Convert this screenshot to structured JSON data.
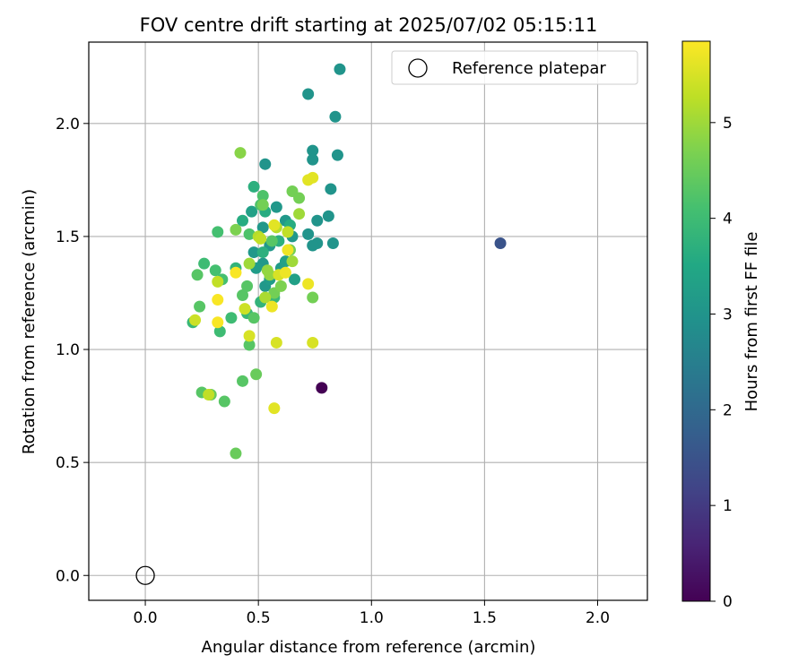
{
  "chart_data": {
    "type": "scatter",
    "title": "FOV centre drift starting at 2025/07/02 05:15:11",
    "xlabel": "Angular distance from reference (arcmin)",
    "ylabel": "Rotation from reference (arcmin)",
    "xlim": [
      -0.25,
      2.22
    ],
    "ylim": [
      -0.11,
      2.36
    ],
    "xticks": [
      "0.0",
      "0.5",
      "1.0",
      "1.5",
      "2.0"
    ],
    "yticks": [
      "0.0",
      "0.5",
      "1.0",
      "1.5",
      "2.0"
    ],
    "grid": true,
    "legend": {
      "placement": "top-right",
      "label": "Reference platepar"
    },
    "reference_point": {
      "x": 0.0,
      "y": 0.0,
      "marker": "open-circle"
    },
    "colorbar": {
      "label": "Hours from first FF file",
      "range": [
        0,
        5.85
      ],
      "ticks": [
        "0",
        "1",
        "2",
        "3",
        "4",
        "5"
      ],
      "colormap": "viridis"
    },
    "series": [
      {
        "points": [
          [
            0.78,
            0.83,
            0.0
          ],
          [
            1.57,
            1.47,
            1.5
          ],
          [
            0.86,
            2.24,
            3.0
          ],
          [
            0.72,
            2.13,
            3.0
          ],
          [
            0.84,
            2.03,
            3.0
          ],
          [
            0.74,
            1.88,
            3.0
          ],
          [
            0.74,
            1.84,
            3.0
          ],
          [
            0.85,
            1.86,
            3.0
          ],
          [
            0.53,
            1.82,
            3.0
          ],
          [
            0.82,
            1.71,
            3.0
          ],
          [
            0.81,
            1.59,
            3.0
          ],
          [
            0.76,
            1.57,
            3.0
          ],
          [
            0.72,
            1.51,
            3.0
          ],
          [
            0.76,
            1.47,
            3.0
          ],
          [
            0.74,
            1.46,
            3.0
          ],
          [
            0.83,
            1.47,
            3.0
          ],
          [
            0.58,
            1.63,
            3.1
          ],
          [
            0.62,
            1.57,
            3.1
          ],
          [
            0.52,
            1.54,
            3.1
          ],
          [
            0.65,
            1.5,
            3.1
          ],
          [
            0.55,
            1.46,
            3.1
          ],
          [
            0.48,
            1.43,
            3.1
          ],
          [
            0.52,
            1.38,
            3.1
          ],
          [
            0.53,
            1.28,
            3.1
          ],
          [
            0.49,
            1.36,
            3.2
          ],
          [
            0.6,
            1.36,
            3.2
          ],
          [
            0.55,
            1.31,
            3.2
          ],
          [
            0.62,
            1.39,
            3.3
          ],
          [
            0.66,
            1.31,
            3.3
          ],
          [
            0.47,
            1.61,
            3.3
          ],
          [
            0.43,
            1.57,
            3.6
          ],
          [
            0.53,
            1.61,
            3.6
          ],
          [
            0.64,
            1.55,
            3.6
          ],
          [
            0.59,
            1.48,
            3.7
          ],
          [
            0.48,
            1.72,
            3.7
          ],
          [
            0.52,
            1.43,
            3.7
          ],
          [
            0.51,
            1.21,
            3.8
          ],
          [
            0.4,
            1.36,
            3.8
          ],
          [
            0.45,
            1.16,
            3.9
          ],
          [
            0.57,
            1.23,
            3.9
          ],
          [
            0.21,
            1.12,
            3.9
          ],
          [
            0.38,
            1.14,
            4.0
          ],
          [
            0.33,
            1.08,
            4.0
          ],
          [
            0.26,
            1.38,
            4.0
          ],
          [
            0.31,
            1.35,
            4.1
          ],
          [
            0.34,
            1.31,
            4.1
          ],
          [
            0.32,
            1.52,
            4.1
          ],
          [
            0.46,
            1.51,
            4.2
          ],
          [
            0.51,
            1.64,
            4.2
          ],
          [
            0.52,
            1.68,
            4.2
          ],
          [
            0.56,
            1.48,
            4.3
          ],
          [
            0.43,
            1.24,
            4.3
          ],
          [
            0.23,
            1.33,
            4.3
          ],
          [
            0.24,
            1.19,
            4.3
          ],
          [
            0.45,
            1.28,
            4.3
          ],
          [
            0.48,
            1.14,
            4.3
          ],
          [
            0.46,
            1.02,
            4.3
          ],
          [
            0.25,
            0.81,
            4.3
          ],
          [
            0.35,
            0.77,
            4.3
          ],
          [
            0.43,
            0.86,
            4.3
          ],
          [
            0.4,
            0.54,
            4.5
          ],
          [
            0.49,
            0.89,
            4.5
          ],
          [
            0.29,
            0.8,
            4.5
          ],
          [
            0.65,
            1.7,
            4.6
          ],
          [
            0.68,
            1.67,
            4.6
          ],
          [
            0.52,
            1.64,
            4.6
          ],
          [
            0.64,
            1.44,
            4.6
          ],
          [
            0.74,
            1.23,
            4.6
          ],
          [
            0.57,
            1.25,
            4.6
          ],
          [
            0.6,
            1.28,
            4.7
          ],
          [
            0.4,
            1.53,
            4.7
          ],
          [
            0.42,
            1.87,
            4.8
          ],
          [
            0.54,
            1.35,
            4.9
          ],
          [
            0.55,
            1.33,
            4.9
          ],
          [
            0.46,
            1.38,
            5.0
          ],
          [
            0.68,
            1.6,
            5.0
          ],
          [
            0.65,
            1.39,
            5.0
          ],
          [
            0.53,
            1.23,
            5.1
          ],
          [
            0.58,
            1.54,
            5.2
          ],
          [
            0.5,
            1.5,
            5.2
          ],
          [
            0.63,
            1.52,
            5.3
          ],
          [
            0.51,
            1.49,
            5.3
          ],
          [
            0.32,
            1.3,
            5.3
          ],
          [
            0.28,
            0.8,
            5.3
          ],
          [
            0.44,
            1.18,
            5.4
          ],
          [
            0.22,
            1.13,
            5.4
          ],
          [
            0.46,
            1.06,
            5.5
          ],
          [
            0.59,
            1.33,
            5.5
          ],
          [
            0.58,
            1.03,
            5.5
          ],
          [
            0.74,
            1.03,
            5.5
          ],
          [
            0.57,
            0.74,
            5.6
          ],
          [
            0.72,
            1.75,
            5.6
          ],
          [
            0.74,
            1.76,
            5.6
          ],
          [
            0.57,
            1.55,
            5.6
          ],
          [
            0.63,
            1.44,
            5.7
          ],
          [
            0.62,
            1.34,
            5.7
          ],
          [
            0.72,
            1.29,
            5.7
          ],
          [
            0.56,
            1.19,
            5.7
          ],
          [
            0.32,
            1.22,
            5.8
          ],
          [
            0.32,
            1.12,
            5.8
          ],
          [
            0.4,
            1.34,
            5.8
          ]
        ]
      }
    ]
  }
}
